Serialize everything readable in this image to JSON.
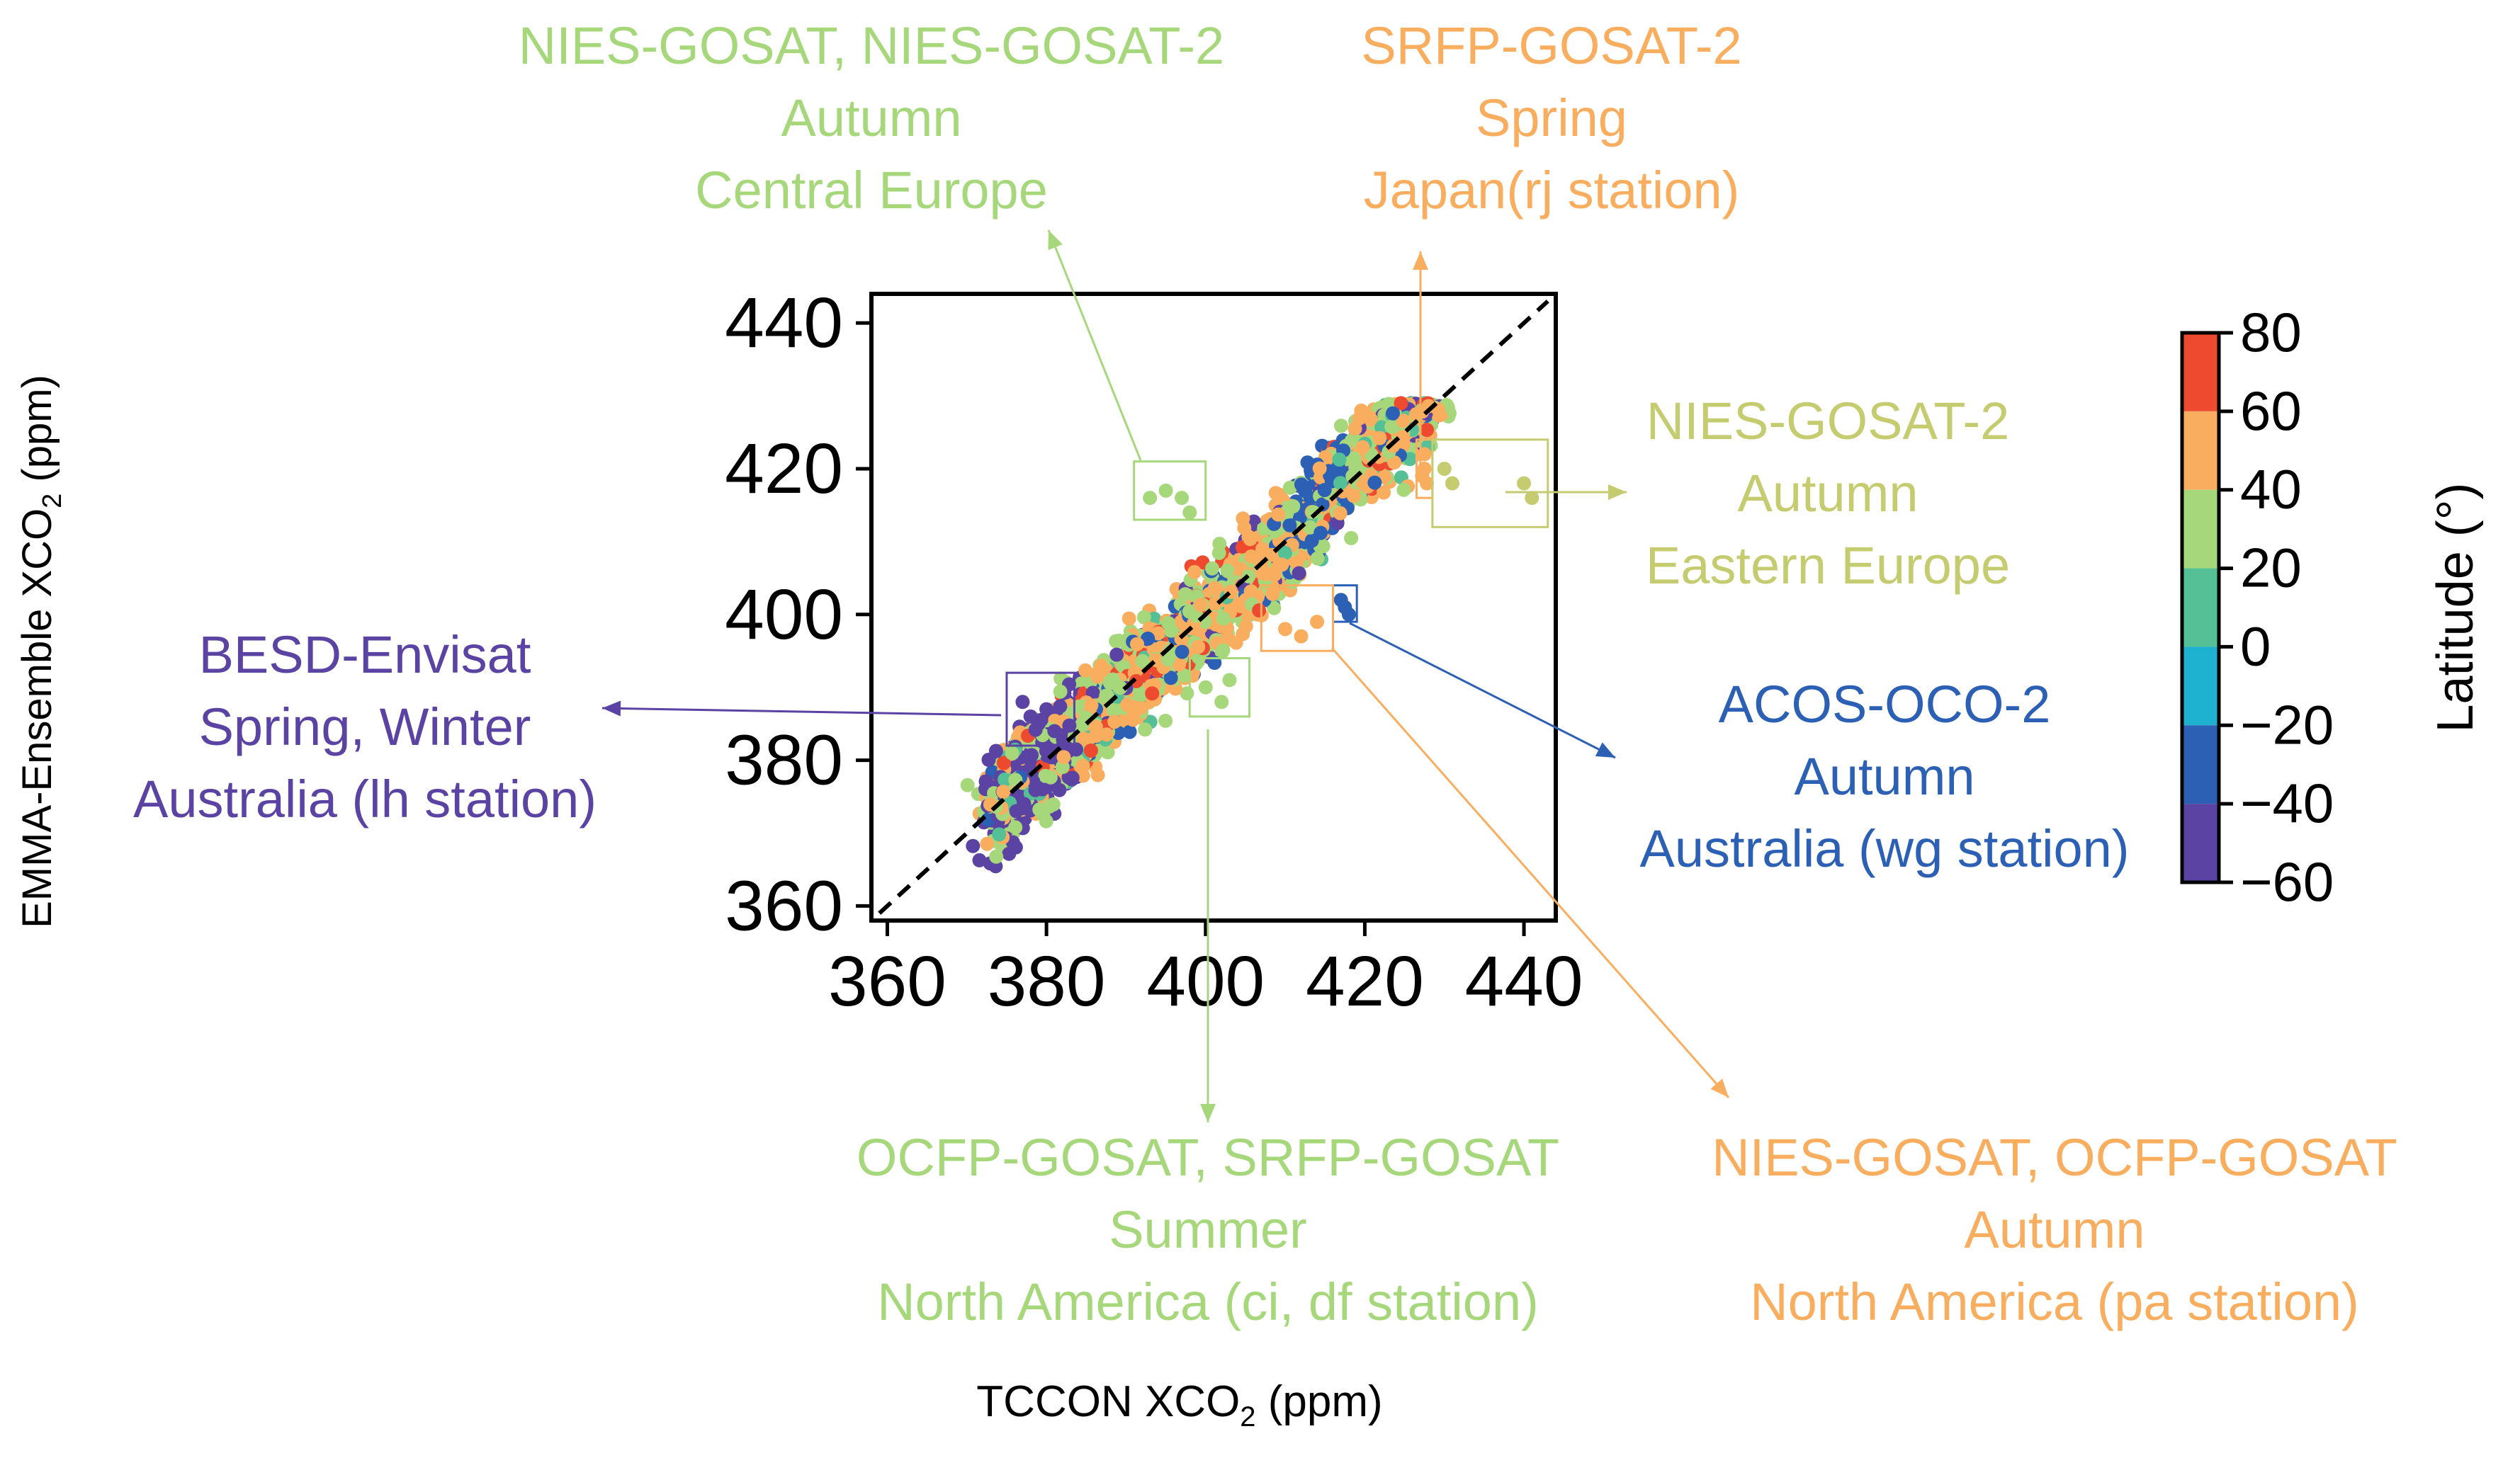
{
  "chart_data": {
    "type": "scatter",
    "title": "",
    "xlabel": "TCCON XCO",
    "xlabel_sub": "2",
    "xlabel_unit": " (ppm)",
    "ylabel": "EMMA-Ensemble XCO",
    "ylabel_sub": "2",
    "ylabel_unit": " (ppm)",
    "xlim": [
      358,
      444
    ],
    "ylim": [
      358,
      444
    ],
    "xticks": [
      360,
      380,
      400,
      420,
      440
    ],
    "yticks": [
      360,
      380,
      400,
      420,
      440
    ],
    "reference_line": "1:1 line (dashed)",
    "colorbar": {
      "label": "Latitude (°)",
      "range": [
        -60,
        80
      ],
      "ticks": [
        80,
        60,
        40,
        20,
        0,
        -20,
        -40,
        -60
      ],
      "tick_labels": [
        "80",
        "60",
        "40",
        "20",
        "0",
        "−20",
        "−40",
        "−60"
      ],
      "bands": [
        {
          "from": 60,
          "to": 80,
          "color": "#ee4a2f"
        },
        {
          "from": 40,
          "to": 60,
          "color": "#f8ae5e"
        },
        {
          "from": 20,
          "to": 40,
          "color": "#a6d87b"
        },
        {
          "from": 0,
          "to": 20,
          "color": "#55bf96"
        },
        {
          "from": -20,
          "to": 0,
          "color": "#1fb1d0"
        },
        {
          "from": -40,
          "to": -20,
          "color": "#2c60b5"
        },
        {
          "from": -60,
          "to": -40,
          "color": "#5b43a3"
        }
      ]
    },
    "main_cloud": {
      "description_points": [
        {
          "x": 374,
          "y": 376
        },
        {
          "x": 380,
          "y": 384
        },
        {
          "x": 390,
          "y": 394
        },
        {
          "x": 400,
          "y": 402
        },
        {
          "x": 410,
          "y": 410
        },
        {
          "x": 420,
          "y": 418
        },
        {
          "x": 424,
          "y": 426
        }
      ]
    },
    "highlight_groups": [
      {
        "lines": [
          "NIES-GOSAT, NIES-GOSAT-2",
          "Autumn",
          "Central Europe"
        ],
        "color": "#a6d87b",
        "box": {
          "x0": 391,
          "x1": 400,
          "y0": 413,
          "y1": 421
        },
        "points": [
          {
            "x": 393,
            "y": 416
          },
          {
            "x": 395,
            "y": 417
          },
          {
            "x": 397,
            "y": 416
          },
          {
            "x": 398,
            "y": 414
          }
        ]
      },
      {
        "lines": [
          "SRFP-GOSAT-2",
          "Spring",
          "Japan(rj station)"
        ],
        "color": "#f8ae5e",
        "box": {
          "x0": 426.5,
          "x1": 428.5,
          "y0": 416,
          "y1": 424
        },
        "points": [
          {
            "x": 427.5,
            "y": 422
          },
          {
            "x": 427.5,
            "y": 420
          },
          {
            "x": 427.8,
            "y": 418
          },
          {
            "x": 427.2,
            "y": 419
          }
        ]
      },
      {
        "lines": [
          "NIES-GOSAT-2",
          "Autumn",
          "Eastern Europe"
        ],
        "color": "#c5cc6f",
        "box": {
          "x0": 428.5,
          "x1": 443,
          "y0": 412,
          "y1": 424
        },
        "points": [
          {
            "x": 430,
            "y": 420
          },
          {
            "x": 431,
            "y": 418
          },
          {
            "x": 440,
            "y": 418
          },
          {
            "x": 441,
            "y": 416
          }
        ]
      },
      {
        "lines": [
          "BESD-Envisat",
          "Spring, Winter",
          "Australia (lh station)"
        ],
        "color": "#5b43a3",
        "box": {
          "x0": 375,
          "x1": 383.5,
          "y0": 382,
          "y1": 392
        },
        "points": [
          {
            "x": 377,
            "y": 388
          },
          {
            "x": 378,
            "y": 386
          },
          {
            "x": 379,
            "y": 385
          },
          {
            "x": 380,
            "y": 387
          },
          {
            "x": 381,
            "y": 384
          }
        ]
      },
      {
        "lines": [
          "ACOS-OCO-2",
          "Autumn",
          "Australia (wg station)"
        ],
        "color": "#2c60b5",
        "box": {
          "x0": 416,
          "x1": 419,
          "y0": 399,
          "y1": 404
        },
        "points": [
          {
            "x": 417,
            "y": 402
          },
          {
            "x": 417.5,
            "y": 401
          },
          {
            "x": 418,
            "y": 400
          }
        ]
      },
      {
        "lines": [
          "OCFP-GOSAT, SRFP-GOSAT",
          "Summer",
          "North America (ci, df station)"
        ],
        "color": "#a6d87b",
        "box": {
          "x0": 398,
          "x1": 405.5,
          "y0": 386,
          "y1": 394
        },
        "points": [
          {
            "x": 400,
            "y": 390
          },
          {
            "x": 402,
            "y": 388
          },
          {
            "x": 403,
            "y": 391
          }
        ]
      },
      {
        "lines": [
          "NIES-GOSAT, OCFP-GOSAT",
          "Autumn",
          "North America (pa station)"
        ],
        "color": "#f8ae5e",
        "box": {
          "x0": 407,
          "x1": 416,
          "y0": 395,
          "y1": 404
        },
        "points": [
          {
            "x": 410,
            "y": 398
          },
          {
            "x": 412,
            "y": 397
          },
          {
            "x": 414,
            "y": 399
          }
        ]
      }
    ]
  }
}
